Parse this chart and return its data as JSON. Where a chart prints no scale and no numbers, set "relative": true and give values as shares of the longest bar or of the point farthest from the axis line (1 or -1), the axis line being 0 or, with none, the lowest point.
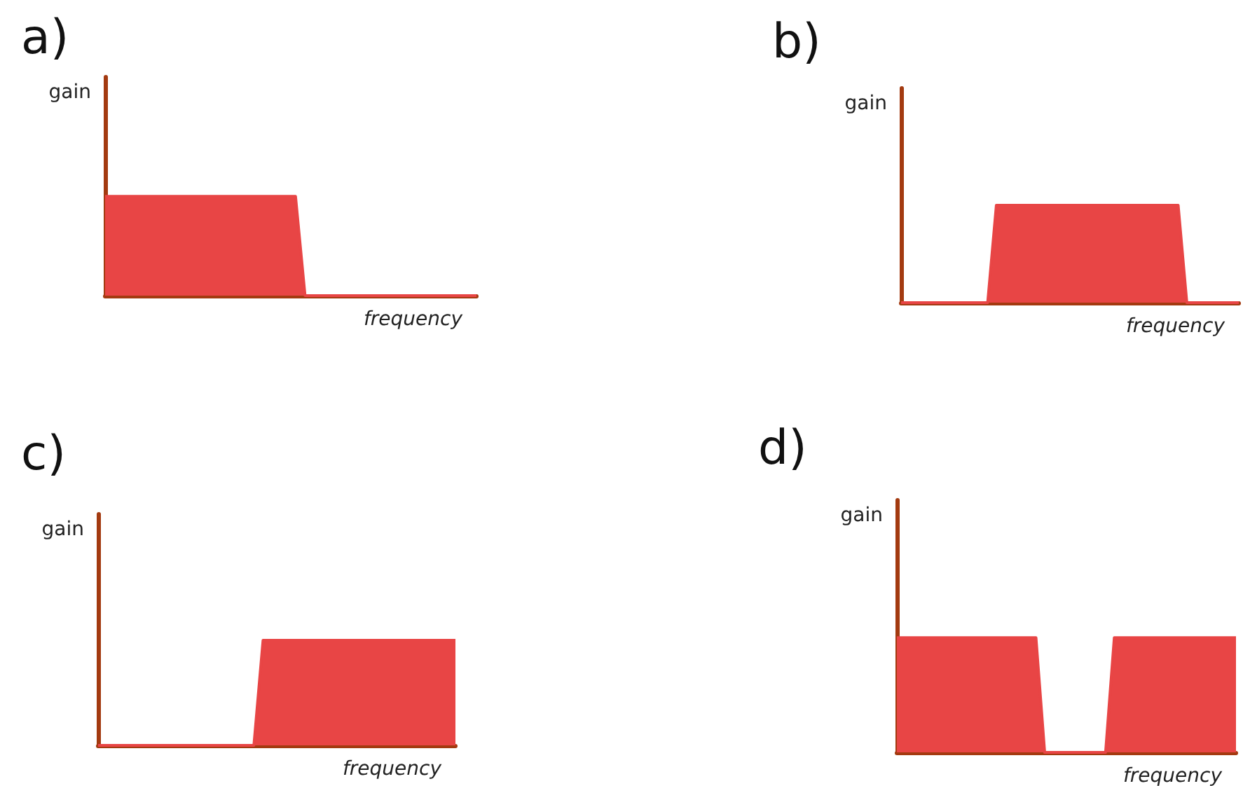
{
  "chart_data": [
    {
      "type": "area",
      "title": "a)",
      "xlabel": "frequency",
      "ylabel": "gain",
      "relative": true,
      "categories": [
        null,
        null,
        null,
        null,
        null,
        null,
        null,
        null,
        null,
        null,
        null,
        null,
        null,
        null,
        null,
        null,
        null,
        null,
        null,
        null,
        null,
        null,
        null,
        null,
        null,
        null,
        null,
        null,
        null,
        null,
        null,
        null,
        null,
        null,
        null,
        null,
        null,
        null,
        null,
        null
      ],
      "values": [
        1,
        1,
        1,
        1,
        1,
        1,
        1,
        1,
        1,
        1,
        1,
        1,
        1,
        1,
        1,
        1,
        1,
        1,
        1,
        1,
        1,
        0,
        0,
        0,
        0,
        0,
        0,
        0,
        0,
        0,
        0,
        0,
        0,
        0,
        0,
        0,
        0,
        0,
        0,
        0
      ],
      "color": "#e84545"
    },
    {
      "type": "area",
      "title": "b)",
      "xlabel": "frequency",
      "ylabel": "gain",
      "relative": true,
      "categories": [
        null,
        null,
        null,
        null,
        null,
        null,
        null,
        null,
        null,
        null,
        null,
        null,
        null,
        null,
        null,
        null,
        null,
        null,
        null,
        null,
        null,
        null,
        null,
        null,
        null,
        null,
        null,
        null,
        null,
        null,
        null,
        null,
        null,
        null,
        null,
        null,
        null,
        null,
        null,
        null
      ],
      "values": [
        0,
        0,
        0,
        0,
        0,
        0,
        0,
        0,
        0,
        0,
        0,
        1,
        1,
        1,
        1,
        1,
        1,
        1,
        1,
        1,
        1,
        1,
        1,
        1,
        1,
        1,
        1,
        1,
        1,
        1,
        1,
        1,
        1,
        0,
        0,
        0,
        0,
        0,
        0,
        0
      ],
      "color": "#e84545"
    },
    {
      "type": "area",
      "title": "c)",
      "xlabel": "frequency",
      "ylabel": "gain",
      "relative": true,
      "categories": [
        null,
        null,
        null,
        null,
        null,
        null,
        null,
        null,
        null,
        null,
        null,
        null,
        null,
        null,
        null,
        null,
        null,
        null,
        null,
        null,
        null,
        null,
        null,
        null,
        null,
        null,
        null,
        null,
        null,
        null,
        null,
        null,
        null,
        null,
        null,
        null,
        null,
        null,
        null,
        null
      ],
      "values": [
        0,
        0,
        0,
        0,
        0,
        0,
        0,
        0,
        0,
        0,
        0,
        0,
        0,
        0,
        0,
        0,
        0,
        0,
        1,
        1,
        1,
        1,
        1,
        1,
        1,
        1,
        1,
        1,
        1,
        1,
        1,
        1,
        1,
        1,
        1,
        1,
        1,
        1,
        1,
        1
      ],
      "color": "#e84545"
    },
    {
      "type": "area",
      "title": "d)",
      "xlabel": "frequency",
      "ylabel": "gain",
      "relative": true,
      "categories": [
        null,
        null,
        null,
        null,
        null,
        null,
        null,
        null,
        null,
        null,
        null,
        null,
        null,
        null,
        null,
        null,
        null,
        null,
        null,
        null,
        null,
        null,
        null,
        null,
        null,
        null,
        null,
        null,
        null,
        null,
        null,
        null,
        null,
        null,
        null,
        null,
        null,
        null,
        null,
        null
      ],
      "values": [
        1,
        1,
        1,
        1,
        1,
        1,
        1,
        1,
        1,
        1,
        1,
        1,
        1,
        1,
        1,
        1,
        1,
        0,
        0,
        0,
        0,
        0,
        0,
        0,
        0,
        1,
        1,
        1,
        1,
        1,
        1,
        1,
        1,
        1,
        1,
        1,
        1,
        1,
        1,
        1
      ],
      "color": "#e84545"
    }
  ]
}
